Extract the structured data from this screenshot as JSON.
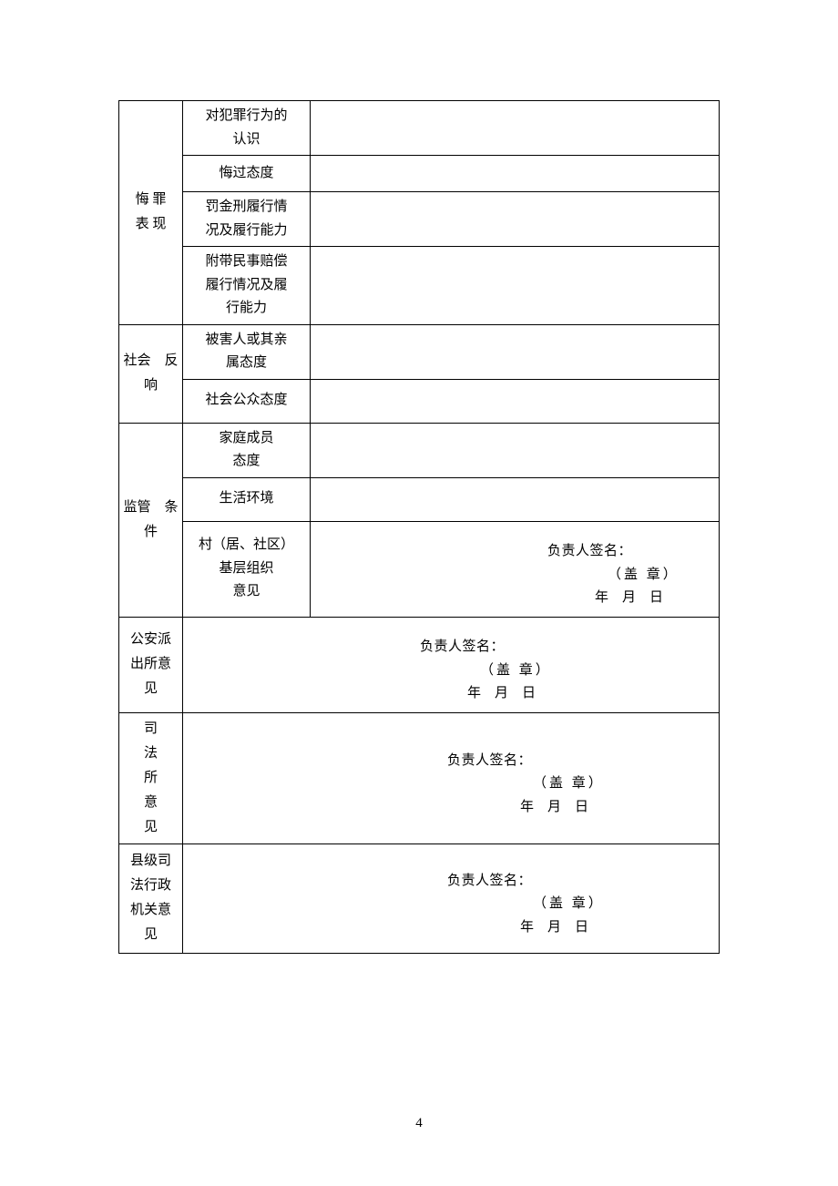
{
  "table": {
    "col1_widths": {
      "col1": 70,
      "col2": 140
    },
    "border_color": "#000000",
    "font_size": 15,
    "section1": {
      "header": "悔 罪\n表 现",
      "rows": [
        {
          "label": "对犯罪行为的\n认识",
          "value": ""
        },
        {
          "label": "悔过态度",
          "value": ""
        },
        {
          "label": "罚金刑履行情\n况及履行能力",
          "value": ""
        },
        {
          "label": "附带民事赔偿\n履行情况及履\n行能力",
          "value": ""
        }
      ]
    },
    "section2": {
      "header": "社会　反\n响",
      "rows": [
        {
          "label": "被害人或其亲\n属态度",
          "value": ""
        },
        {
          "label": "社会公众态度",
          "value": ""
        }
      ]
    },
    "section3": {
      "header": "监管　条\n件",
      "rows": [
        {
          "label": "家庭成员\n态度",
          "value": ""
        },
        {
          "label": "生活环境",
          "value": ""
        },
        {
          "label": "村（居、社区）\n基层组织\n意见",
          "sig": {
            "line1": "负责人签名：",
            "line2": "（盖 章）",
            "line3": "年　月　日"
          }
        }
      ]
    },
    "section4": {
      "header": "公安派\n出所意\n见",
      "sig": {
        "line1": "负责人签名：",
        "line2": "（盖 章）",
        "line3": "年　月　日"
      }
    },
    "section5": {
      "header": "司\n法\n所\n意\n见",
      "sig": {
        "line1": "负责人签名：",
        "line2": "（盖 章）",
        "line3": "年　月　日"
      }
    },
    "section6": {
      "header": "县级司\n法行政\n机关意\n见",
      "sig": {
        "line1": "负责人签名：",
        "line2": "（盖 章）",
        "line3": "年　月　日"
      }
    }
  },
  "page_number": "4"
}
